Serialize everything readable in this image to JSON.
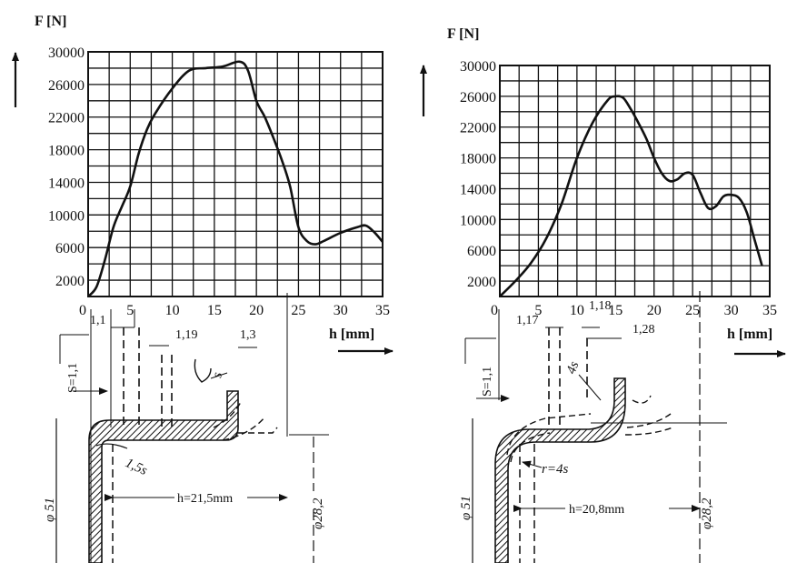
{
  "chart_data": [
    {
      "type": "line",
      "ylabel": "F [N]",
      "xlabel": "h [mm]",
      "xlim": [
        0,
        35
      ],
      "ylim": [
        0,
        30000
      ],
      "xticks": [
        "0",
        "5",
        "10",
        "15",
        "20",
        "25",
        "30",
        "35"
      ],
      "yticks": [
        "2000",
        "6000",
        "10000",
        "14000",
        "18000",
        "22000",
        "26000",
        "30000"
      ],
      "grid": true,
      "series": [
        {
          "x": [
            0,
            1,
            2,
            3,
            4,
            5,
            6,
            7,
            8,
            10,
            12,
            14,
            16,
            18,
            19,
            20,
            21,
            22,
            23,
            24,
            25,
            26,
            27,
            28,
            30,
            32,
            33,
            34,
            35
          ],
          "y": [
            0,
            1200,
            4500,
            8500,
            11000,
            13500,
            17500,
            20500,
            22500,
            25500,
            27700,
            28000,
            28200,
            28800,
            27700,
            24000,
            22000,
            19500,
            16800,
            13500,
            8500,
            6800,
            6400,
            6800,
            7800,
            8500,
            8700,
            7900,
            6700
          ]
        }
      ],
      "annotations": [
        "1,1",
        "1,19",
        "1,3",
        "S=1,1",
        "s",
        "1,5s",
        "φ 51",
        "φ28,2",
        "h=21,5mm"
      ]
    },
    {
      "type": "line",
      "ylabel": "F [N]",
      "xlabel": "h [mm]",
      "xlim": [
        0,
        35
      ],
      "ylim": [
        0,
        30000
      ],
      "xticks": [
        "0",
        "5",
        "10",
        "15",
        "20",
        "25",
        "30",
        "35"
      ],
      "yticks": [
        "2000",
        "6000",
        "10000",
        "14000",
        "18000",
        "22000",
        "26000",
        "30000"
      ],
      "grid": true,
      "series": [
        {
          "x": [
            0,
            2,
            4,
            6,
            8,
            10,
            12,
            14,
            15,
            16,
            17,
            18,
            19,
            20,
            21,
            22,
            23,
            24,
            25,
            26,
            27,
            28,
            29,
            30,
            31,
            32,
            33,
            34
          ],
          "y": [
            0,
            2000,
            4300,
            7500,
            12000,
            18000,
            22500,
            25500,
            26000,
            25800,
            24300,
            22500,
            20500,
            18000,
            16000,
            15000,
            15200,
            16000,
            15800,
            13500,
            11500,
            11700,
            13000,
            13200,
            12800,
            11000,
            7500,
            4000
          ]
        }
      ],
      "annotations": [
        "1,17",
        "1,18",
        "1,28",
        "4s",
        "S=1,1",
        "r=4s",
        "φ 51",
        "φ28,2",
        "h=20,8mm"
      ]
    }
  ]
}
